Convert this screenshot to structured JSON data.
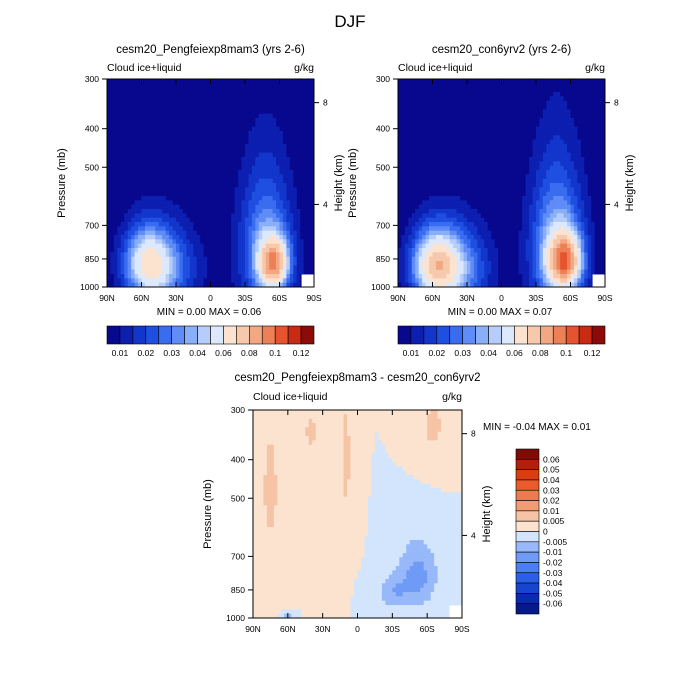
{
  "figure": {
    "title": "DJF"
  },
  "colormap": [
    "#08088f",
    "#0c1fb0",
    "#1236cc",
    "#1f4fe0",
    "#3a6cf0",
    "#5f8cf7",
    "#8aaff9",
    "#b6cdfb",
    "#dce9fd",
    "#fbe3d0",
    "#f6c8ac",
    "#f2a883",
    "#ee8058",
    "#e5542e",
    "#c82a14",
    "#8c0b08"
  ],
  "diff_colormap": [
    "#071a8a",
    "#0a2ab0",
    "#1645d0",
    "#2a60e8",
    "#4a7ef4",
    "#6f9bf6",
    "#97b8f9",
    "#d2e5fc",
    "#fbe3cf",
    "#f6c3a5",
    "#f29c76",
    "#ef7a4f",
    "#ea5a2a",
    "#db3d13",
    "#b3200a",
    "#7d0c05"
  ],
  "chart_data": [
    {
      "type": "heatmap",
      "title": "cesm20_Pengfeiexp8mam3 (yrs 2-6)",
      "left_label": "Cloud ice+liquid",
      "right_label": "g/kg",
      "ylabel": "Pressure (mb)",
      "ylabel_right": "Height (km)",
      "x_ticks": [
        "90N",
        "60N",
        "30N",
        "0",
        "30S",
        "60S",
        "90S"
      ],
      "y_ticks": [
        "300",
        "400",
        "500",
        "700",
        "850",
        "1000"
      ],
      "y_ticks_right": [
        "8",
        "4"
      ],
      "ylim": [
        1000,
        300
      ],
      "xlim": [
        90,
        -90
      ],
      "min_max_text": "MIN =   0.00  MAX =   0.06",
      "min": 0.0,
      "max": 0.06,
      "levels": [
        "0.01",
        "0.02",
        "0.03",
        "0.04",
        "0.06",
        "0.08",
        "0.1",
        "0.12"
      ],
      "features": [
        {
          "lat": 55,
          "p": 870,
          "value": 0.04,
          "sx": 14,
          "sp": 120
        },
        {
          "lat": 40,
          "p": 900,
          "value": 0.025,
          "sx": 20,
          "sp": 150
        },
        {
          "lat": -55,
          "p": 870,
          "value": 0.06,
          "sx": 9,
          "sp": 90
        },
        {
          "lat": -48,
          "p": 800,
          "value": 0.03,
          "sx": 16,
          "sp": 230
        }
      ]
    },
    {
      "type": "heatmap",
      "title": "cesm20_con6yrv2 (yrs 2-6)",
      "left_label": "Cloud ice+liquid",
      "right_label": "g/kg",
      "ylabel": "Pressure (mb)",
      "ylabel_right": "Height (km)",
      "x_ticks": [
        "90N",
        "60N",
        "30N",
        "0",
        "30S",
        "60S",
        "90S"
      ],
      "y_ticks": [
        "300",
        "400",
        "500",
        "700",
        "850",
        "1000"
      ],
      "y_ticks_right": [
        "8",
        "4"
      ],
      "ylim": [
        1000,
        300
      ],
      "xlim": [
        90,
        -90
      ],
      "min_max_text": "MIN =   0.00  MAX =   0.07",
      "min": 0.0,
      "max": 0.07,
      "levels": [
        "0.01",
        "0.02",
        "0.03",
        "0.04",
        "0.06",
        "0.08",
        "0.1",
        "0.12"
      ],
      "features": [
        {
          "lat": 58,
          "p": 880,
          "value": 0.05,
          "sx": 14,
          "sp": 120
        },
        {
          "lat": 40,
          "p": 900,
          "value": 0.03,
          "sx": 20,
          "sp": 150
        },
        {
          "lat": -55,
          "p": 860,
          "value": 0.065,
          "sx": 10,
          "sp": 95
        },
        {
          "lat": -48,
          "p": 800,
          "value": 0.035,
          "sx": 16,
          "sp": 240
        }
      ]
    },
    {
      "type": "heatmap",
      "title": "cesm20_Pengfeiexp8mam3 - cesm20_con6yrv2",
      "left_label": "Cloud ice+liquid",
      "right_label": "g/kg",
      "ylabel": "Pressure (mb)",
      "ylabel_right": "Height (km)",
      "x_ticks": [
        "90N",
        "60N",
        "30N",
        "0",
        "30S",
        "60S",
        "90S"
      ],
      "y_ticks": [
        "300",
        "400",
        "500",
        "700",
        "850",
        "1000"
      ],
      "y_ticks_right": [
        "8",
        "4"
      ],
      "ylim": [
        1000,
        300
      ],
      "xlim": [
        90,
        -90
      ],
      "min_max_text": "MIN =  -0.04  MAX =   0.01",
      "min": -0.04,
      "max": 0.01,
      "levels": [
        "0.06",
        "0.05",
        "0.04",
        "0.03",
        "0.02",
        "0.01",
        "0.005",
        "0",
        "-0.005",
        "-0.01",
        "-0.02",
        "-0.03",
        "-0.04",
        "-0.05",
        "-0.06"
      ],
      "features": [
        {
          "lat": -52,
          "p": 780,
          "value": -0.012,
          "sx": 12,
          "sp": 110
        },
        {
          "lat": -30,
          "p": 860,
          "value": -0.008,
          "sx": 10,
          "sp": 60
        },
        {
          "lat": 60,
          "p": 990,
          "value": -0.01,
          "sx": 3,
          "sp": 15
        },
        {
          "lat": 75,
          "p": 480,
          "value": 0.006,
          "sx": 8,
          "sp": 200
        },
        {
          "lat": 10,
          "p": 400,
          "value": 0.006,
          "sx": 5,
          "sp": 150
        },
        {
          "lat": -65,
          "p": 330,
          "value": 0.006,
          "sx": 10,
          "sp": 50
        },
        {
          "lat": 40,
          "p": 340,
          "value": 0.006,
          "sx": 6,
          "sp": 40
        }
      ]
    }
  ]
}
